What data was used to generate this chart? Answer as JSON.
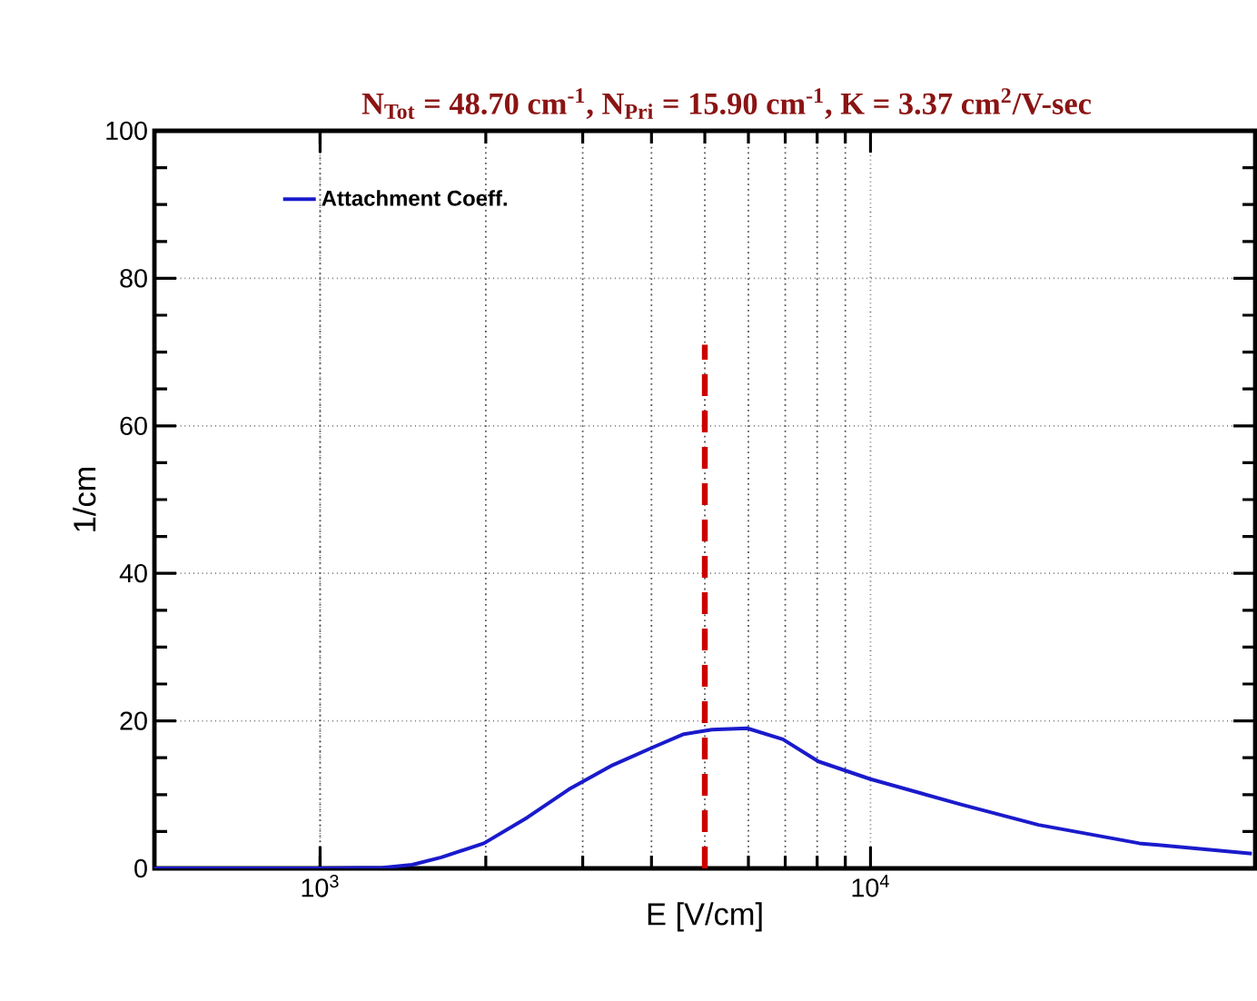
{
  "chart_data": {
    "type": "line",
    "title": "N$_{Tot}$ = 48.70 cm$^{-1}$, N$_{Pri}$ = 15.90 cm$^{-1}$, K = 3.37 cm$^{2}$/V-sec",
    "xlabel": "E [V/cm]",
    "ylabel": "1/cm",
    "log": "x",
    "xlim": [
      500,
      50000
    ],
    "ylim": [
      0,
      100
    ],
    "xticks": [
      {
        "value": 1000,
        "label": "10$^{3}$"
      },
      {
        "value": 10000,
        "label": "10$^{4}$"
      }
    ],
    "yticks": [
      0,
      20,
      40,
      60,
      80,
      100
    ],
    "grid": true,
    "legend": "top left",
    "series": [
      {
        "name": "Attachment Coeff.",
        "color": "#1a1acc",
        "x": [
          500,
          1000,
          1300,
          1470,
          1660,
          1985,
          2380,
          2830,
          3400,
          4050,
          4580,
          5150,
          5970,
          6930,
          8040,
          10000,
          14550,
          20200,
          30800,
          49300
        ],
        "values": [
          0,
          0,
          0.1,
          0.5,
          1.5,
          3.4,
          6.9,
          10.7,
          14,
          16.5,
          18.2,
          18.8,
          19,
          17.5,
          14.5,
          12.1,
          8.7,
          5.9,
          3.4,
          2
        ]
      },
      {
        "color": "#cc0000",
        "line_style": "dashed",
        "x": [
          5000,
          5000
        ],
        "values": [
          0,
          71
        ]
      }
    ]
  }
}
